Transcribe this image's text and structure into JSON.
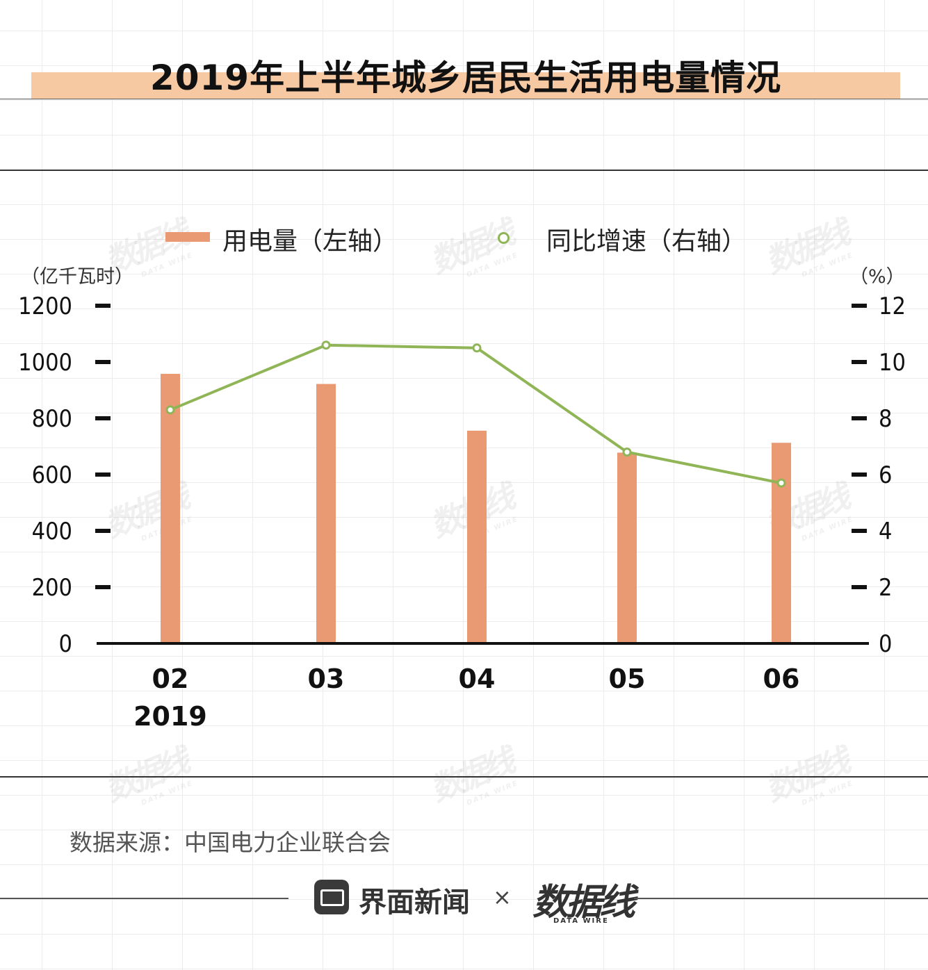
{
  "title": "2019年上半年城乡居民生活用电量情况",
  "legend": {
    "bar_label": "用电量（左轴）",
    "line_label": "同比增速（右轴）"
  },
  "left_unit": "（亿千瓦时）",
  "right_unit": "（%）",
  "source": "数据来源：中国电力企业联合会",
  "footer": {
    "brand_left": "界面新闻",
    "separator": "×",
    "brand_right": "数据线",
    "brand_right_sub": "DATA WIRE"
  },
  "watermark": {
    "text": "数据线",
    "sub": "DATA WIRE"
  },
  "colors": {
    "bar": "#ea9a73",
    "line": "#8fb556",
    "title_band": "#f7c9a3"
  },
  "chart_data": {
    "type": "bar",
    "title": "2019年上半年城乡居民生活用电量情况",
    "categories": [
      "02",
      "03",
      "04",
      "05",
      "06"
    ],
    "category_sublabels": [
      "2019",
      "",
      "",
      "",
      ""
    ],
    "series": [
      {
        "name": "用电量（左轴）",
        "type": "bar",
        "axis": "left",
        "values": [
          958,
          922,
          756,
          678,
          713
        ]
      },
      {
        "name": "同比增速（右轴）",
        "type": "line",
        "axis": "right",
        "values": [
          8.3,
          10.6,
          10.5,
          6.8,
          5.7
        ]
      }
    ],
    "left_axis": {
      "unit": "（亿千瓦时）",
      "range": [
        0,
        1200
      ],
      "ticks": [
        "0",
        "200",
        "400",
        "600",
        "800",
        "1000",
        "1200"
      ]
    },
    "right_axis": {
      "unit": "（%）",
      "range": [
        0,
        12
      ],
      "ticks": [
        "0",
        "2",
        "4",
        "6",
        "8",
        "10",
        "12"
      ]
    },
    "grid": false,
    "legend_position": "top"
  }
}
